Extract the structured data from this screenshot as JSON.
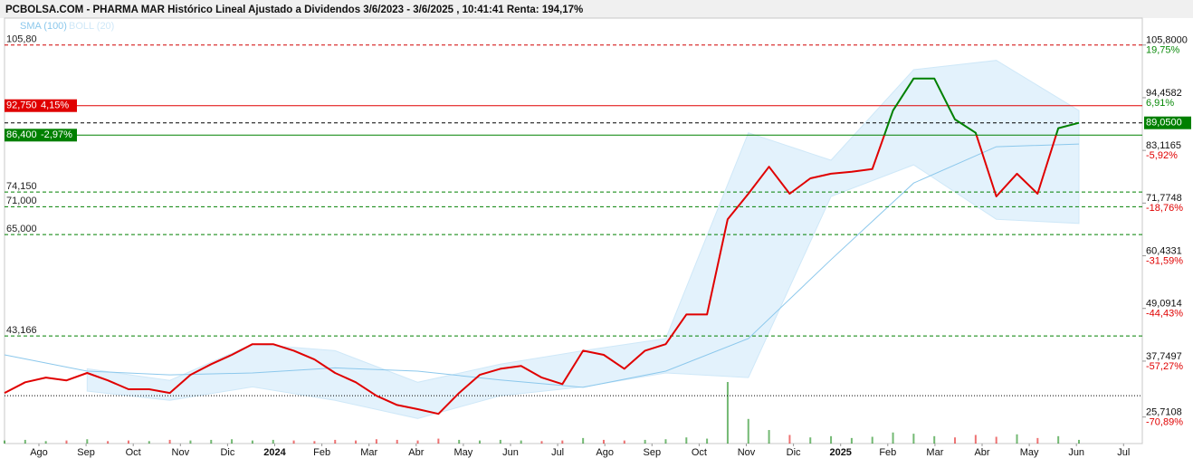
{
  "chart_data": {
    "type": "line",
    "title": "PCBOLSA.COM - PHARMA MAR Histórico Lineal Ajustado a Dividendos 3/6/2023 - 3/6/2025 , 10:41:41 Renta: 194,17%",
    "ylim": [
      20,
      111.6
    ],
    "yticks": [
      {
        "value": 105.8,
        "label": "105,8000"
      },
      {
        "value": 94.4582,
        "label": "94,4582"
      },
      {
        "value": 83.1165,
        "label": "83,1165"
      },
      {
        "value": 71.7748,
        "label": "71,7748"
      },
      {
        "value": 60.4331,
        "label": "60,4331"
      },
      {
        "value": 49.0914,
        "label": "49,0914"
      },
      {
        "value": 37.7497,
        "label": "37,7497"
      },
      {
        "value": 25.7108,
        "label": "25,7108"
      }
    ],
    "ytick_pcts": [
      "19,75%",
      "6,91%",
      "-5,92%",
      "-18,76%",
      "-31,59%",
      "-44,43%",
      "-57,27%",
      "-70,89%"
    ],
    "pct_colors": {
      "up": "#0a8a0a",
      "down": "#e00000"
    },
    "x_labels": [
      "Ago",
      "Sep",
      "Oct",
      "Nov",
      "Dic",
      "2024",
      "Feb",
      "Mar",
      "Abr",
      "May",
      "Jun",
      "Jul",
      "Ago",
      "Sep",
      "Oct",
      "Nov",
      "Dic",
      "2025",
      "Feb",
      "Mar",
      "Abr",
      "May",
      "Jun",
      "Jul"
    ],
    "price": {
      "color_above": "#008000",
      "color_below": "#e00000",
      "values": [
        30.9,
        33.2,
        34.2,
        33.6,
        35.2,
        33.6,
        31.7,
        31.7,
        30.9,
        34.8,
        37.1,
        39.1,
        41.4,
        41.4,
        40.0,
        38.1,
        35.2,
        33.2,
        30.3,
        28.3,
        27.4,
        26.4,
        30.9,
        34.8,
        36.1,
        36.7,
        34.2,
        32.8,
        40.0,
        39.1,
        36.1,
        40.0,
        41.4,
        47.8,
        47.8,
        68.3,
        73.8,
        79.6,
        73.8,
        77.1,
        78.1,
        78.5,
        79.1,
        91.7,
        98.6,
        98.6,
        89.8,
        86.9,
        73.2,
        78.1,
        73.8,
        87.9,
        89.05
      ]
    },
    "sma": {
      "name": "SMA (100)",
      "color": "#8cc8ec",
      "values": [
        39.1,
        35.6,
        34.8,
        35.2,
        36.3,
        35.6,
        33.7,
        32.1,
        35.6,
        42.6,
        59.6,
        76.1,
        83.9,
        84.5
      ]
    },
    "boll": {
      "name": "BOLL (20)",
      "color": "#cfe8f8",
      "fill": "#e3f2fc",
      "upper": [
        null,
        36.1,
        33.6,
        41.4,
        40.0,
        33.2,
        37.1,
        40.0,
        42.6,
        86.9,
        81.0,
        100.5,
        102.5,
        91.7
      ],
      "lower": [
        null,
        31.3,
        29.3,
        32.2,
        29.3,
        25.4,
        30.3,
        32.2,
        35.2,
        34.2,
        73.2,
        80.0,
        68.3,
        67.4
      ]
    },
    "volume": [
      5,
      6,
      4,
      5,
      7,
      4,
      5,
      4,
      6,
      5,
      6,
      7,
      5,
      6,
      5,
      4,
      6,
      5,
      7,
      6,
      5,
      8,
      6,
      5,
      6,
      5,
      4,
      5,
      9,
      6,
      5,
      6,
      7,
      10,
      8,
      100,
      40,
      22,
      14,
      10,
      12,
      9,
      11,
      18,
      16,
      12,
      10,
      14,
      11,
      15,
      9,
      12,
      6
    ],
    "levels": [
      {
        "value": 105.8,
        "label": "105,80",
        "color": "#d00000",
        "style": "dashed"
      },
      {
        "value": 92.75,
        "label": "92,750",
        "pct": "4,15%",
        "color": "#e00000",
        "style": "solid",
        "boxed": true
      },
      {
        "value": 89.05,
        "right_label": "89,0500",
        "color": "#000000",
        "style": "dashed"
      },
      {
        "value": 86.4,
        "label": "86,400",
        "pct": "-2,97%",
        "color": "#008000",
        "style": "solid",
        "boxed": true
      },
      {
        "value": 74.15,
        "label": "74,150",
        "color": "#008000",
        "style": "dashed"
      },
      {
        "value": 71.0,
        "label": "71,000",
        "color": "#008000",
        "style": "dashed"
      },
      {
        "value": 65.0,
        "label": "65,000",
        "color": "#008000",
        "style": "dashed"
      },
      {
        "value": 43.166,
        "label": "43,166",
        "color": "#008000",
        "style": "dashed"
      },
      {
        "value": 30.3,
        "color": "#000000",
        "style": "dotted"
      }
    ]
  }
}
